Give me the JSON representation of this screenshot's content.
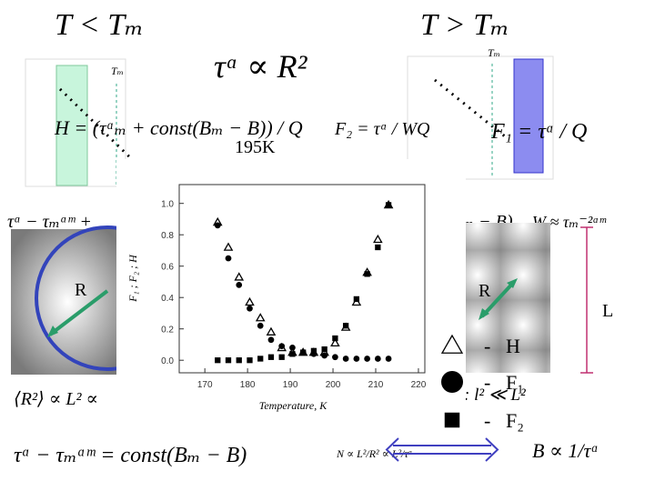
{
  "slide": {
    "headings": [
      "T < Tₘ",
      "T > Tₘ"
    ],
    "main_relation": "τᵅ ∝ R²",
    "temperature_note": "195K",
    "inset_labels": [
      "Tₘ",
      "Tₘ"
    ],
    "formulas": {
      "h": "H = (τᵅₘ + const(Bₘ − B)) / Q",
      "f2": "F₂ = τᵅ / WQ",
      "f1": "F₁ = τᵅ / Q",
      "left_partial": "τᵅ − τₘᵅᵐ +",
      "right_partial": "(Bₘ − B),",
      "w": "W ≈ τₘ⁻²ᵅᵐ",
      "r2": "⟨R²⟩ ∝ L² ∝",
      "l2": ": l² ≪ L²",
      "bottom": "τᵅ − τₘᵅᵐ = const(Bₘ − B)",
      "n": "N ∝ L²/R² ∝ L²/τᵅ",
      "b": "B ∝ 1/τᵅ"
    },
    "labels": {
      "r_left": "R",
      "r_right": "R",
      "l": "L"
    },
    "legend_dash": "-"
  },
  "chart_data": {
    "type": "scatter",
    "x_label": "Temperature, K",
    "y_label": "F₁ ; F₂ ; H",
    "xlim": [
      164,
      221.5
    ],
    "ylim": [
      -0.08,
      1.12
    ],
    "xticks": [
      170,
      180,
      190,
      200,
      210,
      220
    ],
    "yticks": [
      {
        "value": 0,
        "label": "0.0"
      },
      {
        "value": 0.2,
        "label": "0.2"
      },
      {
        "value": 0.4,
        "label": "0.4"
      },
      {
        "value": 0.6,
        "label": "0.6"
      },
      {
        "value": 0.8,
        "label": "0.8"
      },
      {
        "value": 1,
        "label": "1.0"
      }
    ],
    "x": [
      173,
      175.5,
      178,
      180.5,
      183,
      185.5,
      188,
      190.5,
      193,
      195.5,
      198,
      200.5,
      203,
      205.5,
      208,
      210.5,
      213
    ],
    "series": [
      {
        "name": "H",
        "marker": "triangle",
        "color": "#000000",
        "values": [
          0.88,
          0.72,
          0.53,
          0.37,
          0.27,
          0.18,
          0.08,
          0.05,
          0.05,
          0.05,
          0.05,
          0.11,
          0.21,
          0.37,
          0.56,
          0.77,
          0.99
        ]
      },
      {
        "name": "F₁",
        "marker": "circle",
        "color": "#000000",
        "values": [
          0.86,
          0.65,
          0.48,
          0.33,
          0.22,
          0.13,
          0.09,
          0.08,
          0.05,
          0.04,
          0.03,
          0.02,
          0.01,
          0.01,
          0.01,
          0.01,
          0.01
        ]
      },
      {
        "name": "F₂",
        "marker": "square",
        "color": "#000000",
        "values": [
          0,
          0,
          0,
          0,
          0.01,
          0.02,
          0.02,
          0.04,
          0.05,
          0.06,
          0.07,
          0.14,
          0.22,
          0.39,
          0.55,
          0.72,
          0.99
        ]
      }
    ]
  }
}
